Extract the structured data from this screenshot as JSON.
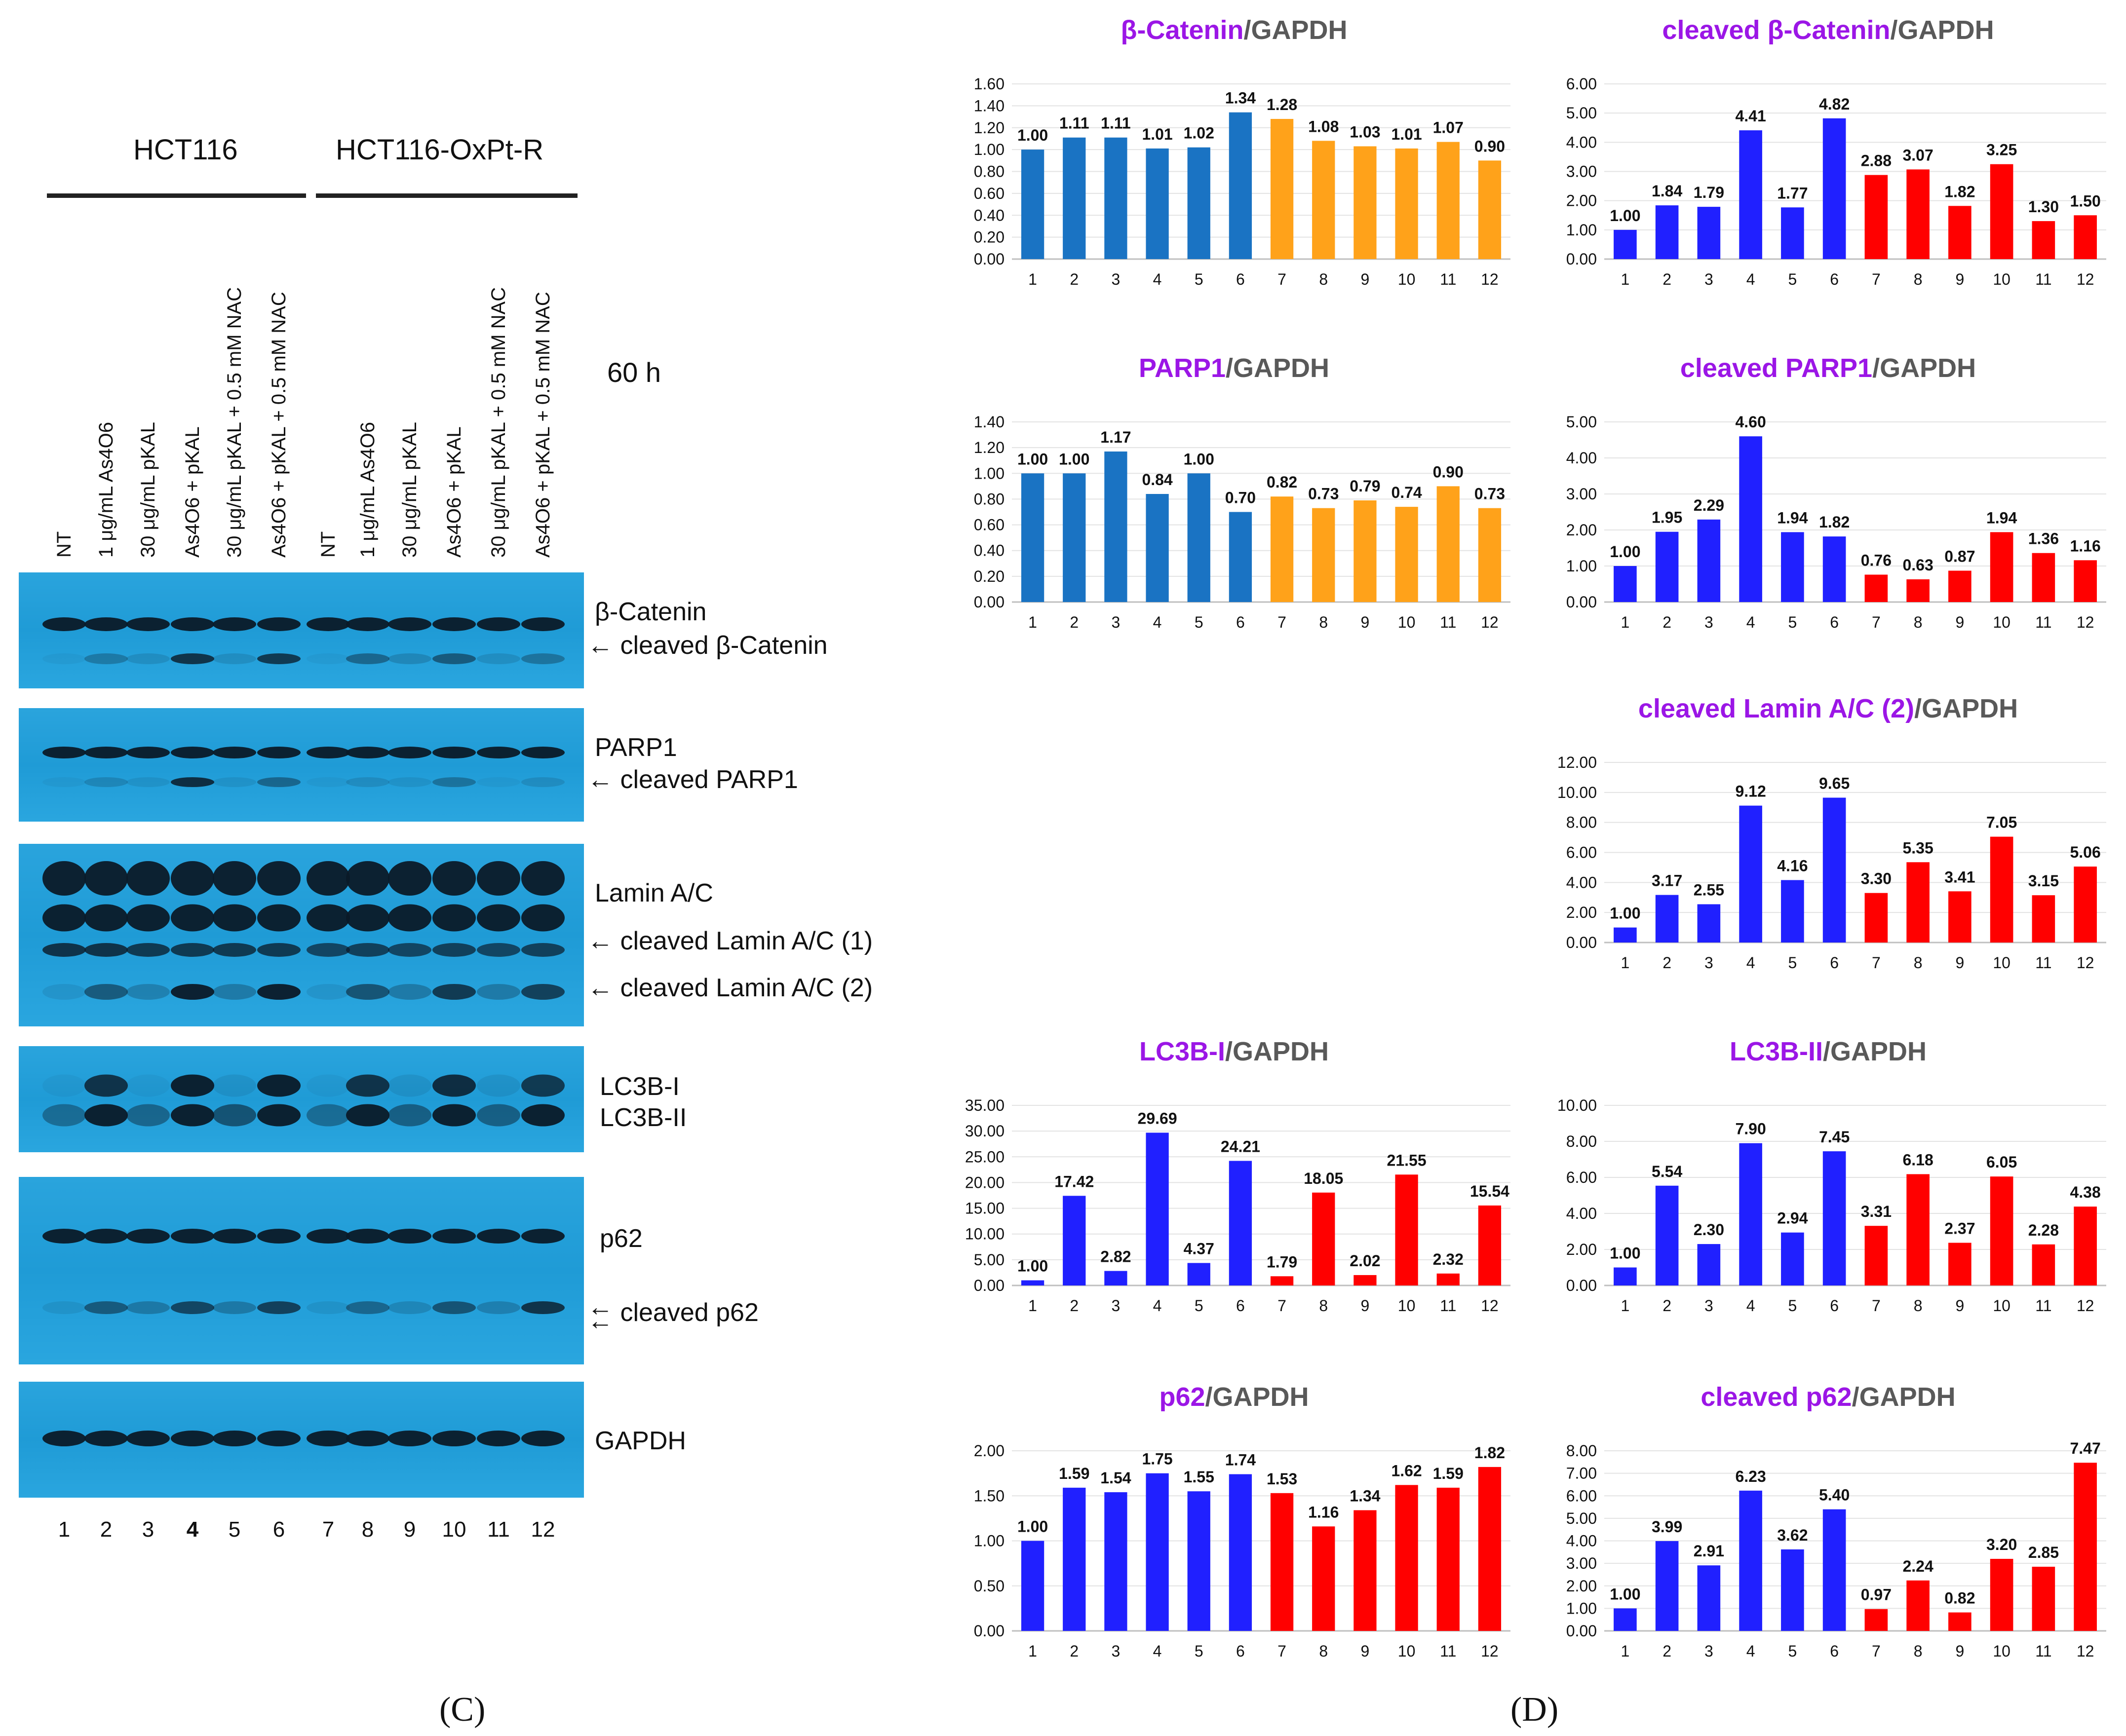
{
  "panel_c": {
    "letter": "(C)",
    "group1": "HCT116",
    "group2": "HCT116-OxPt-R",
    "time": "60 h",
    "lanes": [
      "NT",
      "1 μg/mL As4O6",
      "30 μg/mL pKAL",
      "As4O6 + pKAL",
      "30 μg/mL pKAL + 0.5 mM NAC",
      "As4O6 + pKAL  + 0.5 mM NAC",
      "NT",
      "1 μg/mL As4O6",
      "30 μg/mL pKAL",
      "As4O6 + pKAL",
      "30 μg/mL pKAL + 0.5 mM NAC",
      "As4O6 + pKAL  + 0.5 mM NAC"
    ],
    "lane_numbers": [
      "1",
      "2",
      "3",
      "4",
      "5",
      "6",
      "7",
      "8",
      "9",
      "10",
      "11",
      "12"
    ],
    "bands": {
      "b_catenin": "β-Catenin",
      "cleaved_b_catenin": "cleaved β-Catenin",
      "parp1": "PARP1",
      "cleaved_parp1": "cleaved PARP1",
      "lamin": "Lamin A/C",
      "cleaved_lamin1": "cleaved Lamin A/C (1)",
      "cleaved_lamin2": "cleaved Lamin A/C (2)",
      "lc3b_i": "LC3B-I",
      "lc3b_ii": "LC3B-II",
      "p62": "p62",
      "cleaved_p62": "cleaved p62",
      "gapdh": "GAPDH"
    },
    "arrow": "←"
  },
  "panel_d": {
    "letter": "(D)"
  },
  "colors": {
    "steel_blue": "#1a73c3",
    "orange": "#ffa21a",
    "blue": "#2020ff",
    "red": "#ff0000",
    "title_purple": "#9b16e6",
    "title_gray": "#595959",
    "blot": "#1f9bd6",
    "band": "#0b1a28"
  },
  "chart_data": [
    {
      "id": "c1",
      "type": "bar",
      "title_colored": "β-Catenin",
      "title_rest": "/GAPDH",
      "categories": [
        "1",
        "2",
        "3",
        "4",
        "5",
        "6",
        "7",
        "8",
        "9",
        "10",
        "11",
        "12"
      ],
      "values": [
        1.0,
        1.11,
        1.11,
        1.01,
        1.02,
        1.34,
        1.28,
        1.08,
        1.03,
        1.01,
        1.07,
        0.9
      ],
      "value_labels": [
        "1.00",
        "1.11",
        "1.11",
        "1.01",
        "1.02",
        "1.34",
        "1.28",
        "1.08",
        "1.03",
        "1.01",
        "1.07",
        "0.90"
      ],
      "colors": [
        "#1a73c3",
        "#1a73c3",
        "#1a73c3",
        "#1a73c3",
        "#1a73c3",
        "#1a73c3",
        "#ffa21a",
        "#ffa21a",
        "#ffa21a",
        "#ffa21a",
        "#ffa21a",
        "#ffa21a"
      ],
      "ylim": [
        0,
        1.6
      ],
      "yticks": [
        "0.00",
        "0.20",
        "0.40",
        "0.60",
        "0.80",
        "1.00",
        "1.20",
        "1.40",
        "1.60"
      ]
    },
    {
      "id": "c2",
      "type": "bar",
      "title_colored": "cleaved β-Catenin",
      "title_rest": "/GAPDH",
      "categories": [
        "1",
        "2",
        "3",
        "4",
        "5",
        "6",
        "7",
        "8",
        "9",
        "10",
        "11",
        "12"
      ],
      "values": [
        1.0,
        1.84,
        1.79,
        4.41,
        1.77,
        4.82,
        2.88,
        3.07,
        1.82,
        3.25,
        1.3,
        1.5
      ],
      "value_labels": [
        "1.00",
        "1.84",
        "1.79",
        "4.41",
        "1.77",
        "4.82",
        "2.88",
        "3.07",
        "1.82",
        "3.25",
        "1.30",
        "1.50"
      ],
      "colors": [
        "#2020ff",
        "#2020ff",
        "#2020ff",
        "#2020ff",
        "#2020ff",
        "#2020ff",
        "#ff0000",
        "#ff0000",
        "#ff0000",
        "#ff0000",
        "#ff0000",
        "#ff0000"
      ],
      "ylim": [
        0,
        6
      ],
      "yticks": [
        "0.00",
        "1.00",
        "2.00",
        "3.00",
        "4.00",
        "5.00",
        "6.00"
      ]
    },
    {
      "id": "c3",
      "type": "bar",
      "title_colored": "PARP1",
      "title_rest": "/GAPDH",
      "categories": [
        "1",
        "2",
        "3",
        "4",
        "5",
        "6",
        "7",
        "8",
        "9",
        "10",
        "11",
        "12"
      ],
      "values": [
        1.0,
        1.0,
        1.17,
        0.84,
        1.0,
        0.7,
        0.82,
        0.73,
        0.79,
        0.74,
        0.9,
        0.73
      ],
      "value_labels": [
        "1.00",
        "1.00",
        "1.17",
        "0.84",
        "1.00",
        "0.70",
        "0.82",
        "0.73",
        "0.79",
        "0.74",
        "0.90",
        "0.73"
      ],
      "colors": [
        "#1a73c3",
        "#1a73c3",
        "#1a73c3",
        "#1a73c3",
        "#1a73c3",
        "#1a73c3",
        "#ffa21a",
        "#ffa21a",
        "#ffa21a",
        "#ffa21a",
        "#ffa21a",
        "#ffa21a"
      ],
      "ylim": [
        0,
        1.4
      ],
      "yticks": [
        "0.00",
        "0.20",
        "0.40",
        "0.60",
        "0.80",
        "1.00",
        "1.20",
        "1.40"
      ]
    },
    {
      "id": "c4",
      "type": "bar",
      "title_colored": "cleaved PARP1",
      "title_rest": "/GAPDH",
      "categories": [
        "1",
        "2",
        "3",
        "4",
        "5",
        "6",
        "7",
        "8",
        "9",
        "10",
        "11",
        "12"
      ],
      "values": [
        1.0,
        1.95,
        2.29,
        4.6,
        1.94,
        1.82,
        0.76,
        0.63,
        0.87,
        1.94,
        1.36,
        1.16
      ],
      "value_labels": [
        "1.00",
        "1.95",
        "2.29",
        "4.60",
        "1.94",
        "1.82",
        "0.76",
        "0.63",
        "0.87",
        "1.94",
        "1.36",
        "1.16"
      ],
      "colors": [
        "#2020ff",
        "#2020ff",
        "#2020ff",
        "#2020ff",
        "#2020ff",
        "#2020ff",
        "#ff0000",
        "#ff0000",
        "#ff0000",
        "#ff0000",
        "#ff0000",
        "#ff0000"
      ],
      "ylim": [
        0,
        5
      ],
      "yticks": [
        "0.00",
        "1.00",
        "2.00",
        "3.00",
        "4.00",
        "5.00"
      ]
    },
    {
      "id": "c5",
      "type": "bar",
      "title_colored": "cleaved Lamin A/C (2)",
      "title_rest": "/GAPDH",
      "categories": [
        "1",
        "2",
        "3",
        "4",
        "5",
        "6",
        "7",
        "8",
        "9",
        "10",
        "11",
        "12"
      ],
      "values": [
        1.0,
        3.17,
        2.55,
        9.12,
        4.16,
        9.65,
        3.3,
        5.35,
        3.41,
        7.05,
        3.15,
        5.06
      ],
      "value_labels": [
        "1.00",
        "3.17",
        "2.55",
        "9.12",
        "4.16",
        "9.65",
        "3.30",
        "5.35",
        "3.41",
        "7.05",
        "3.15",
        "5.06"
      ],
      "colors": [
        "#2020ff",
        "#2020ff",
        "#2020ff",
        "#2020ff",
        "#2020ff",
        "#2020ff",
        "#ff0000",
        "#ff0000",
        "#ff0000",
        "#ff0000",
        "#ff0000",
        "#ff0000"
      ],
      "ylim": [
        0,
        12
      ],
      "yticks": [
        "0.00",
        "2.00",
        "4.00",
        "6.00",
        "8.00",
        "10.00",
        "12.00"
      ]
    },
    {
      "id": "c6",
      "type": "bar",
      "title_colored": "LC3B-I",
      "title_rest": "/GAPDH",
      "categories": [
        "1",
        "2",
        "3",
        "4",
        "5",
        "6",
        "7",
        "8",
        "9",
        "10",
        "11",
        "12"
      ],
      "values": [
        1.0,
        17.42,
        2.82,
        29.69,
        4.37,
        24.21,
        1.79,
        18.05,
        2.02,
        21.55,
        2.32,
        15.54
      ],
      "value_labels": [
        "1.00",
        "17.42",
        "2.82",
        "29.69",
        "4.37",
        "24.21",
        "1.79",
        "18.05",
        "2.02",
        "21.55",
        "2.32",
        "15.54"
      ],
      "colors": [
        "#2020ff",
        "#2020ff",
        "#2020ff",
        "#2020ff",
        "#2020ff",
        "#2020ff",
        "#ff0000",
        "#ff0000",
        "#ff0000",
        "#ff0000",
        "#ff0000",
        "#ff0000"
      ],
      "ylim": [
        0,
        35
      ],
      "yticks": [
        "0.00",
        "5.00",
        "10.00",
        "15.00",
        "20.00",
        "25.00",
        "30.00",
        "35.00"
      ]
    },
    {
      "id": "c7",
      "type": "bar",
      "title_colored": "LC3B-II",
      "title_rest": "/GAPDH",
      "categories": [
        "1",
        "2",
        "3",
        "4",
        "5",
        "6",
        "7",
        "8",
        "9",
        "10",
        "11",
        "12"
      ],
      "values": [
        1.0,
        5.54,
        2.3,
        7.9,
        2.94,
        7.45,
        3.31,
        6.18,
        2.37,
        6.05,
        2.28,
        4.38
      ],
      "value_labels": [
        "1.00",
        "5.54",
        "2.30",
        "7.90",
        "2.94",
        "7.45",
        "3.31",
        "6.18",
        "2.37",
        "6.05",
        "2.28",
        "4.38"
      ],
      "colors": [
        "#2020ff",
        "#2020ff",
        "#2020ff",
        "#2020ff",
        "#2020ff",
        "#2020ff",
        "#ff0000",
        "#ff0000",
        "#ff0000",
        "#ff0000",
        "#ff0000",
        "#ff0000"
      ],
      "ylim": [
        0,
        10
      ],
      "yticks": [
        "0.00",
        "2.00",
        "4.00",
        "6.00",
        "8.00",
        "10.00"
      ]
    },
    {
      "id": "c8",
      "type": "bar",
      "title_colored": "p62",
      "title_rest": "/GAPDH",
      "categories": [
        "1",
        "2",
        "3",
        "4",
        "5",
        "6",
        "7",
        "8",
        "9",
        "10",
        "11",
        "12"
      ],
      "values": [
        1.0,
        1.59,
        1.54,
        1.75,
        1.55,
        1.74,
        1.53,
        1.16,
        1.34,
        1.62,
        1.59,
        1.82
      ],
      "value_labels": [
        "1.00",
        "1.59",
        "1.54",
        "1.75",
        "1.55",
        "1.74",
        "1.53",
        "1.16",
        "1.34",
        "1.62",
        "1.59",
        "1.82"
      ],
      "colors": [
        "#2020ff",
        "#2020ff",
        "#2020ff",
        "#2020ff",
        "#2020ff",
        "#2020ff",
        "#ff0000",
        "#ff0000",
        "#ff0000",
        "#ff0000",
        "#ff0000",
        "#ff0000"
      ],
      "ylim": [
        0,
        2
      ],
      "yticks": [
        "0.00",
        "0.50",
        "1.00",
        "1.50",
        "2.00"
      ]
    },
    {
      "id": "c9",
      "type": "bar",
      "title_colored": "cleaved p62",
      "title_rest": "/GAPDH",
      "categories": [
        "1",
        "2",
        "3",
        "4",
        "5",
        "6",
        "7",
        "8",
        "9",
        "10",
        "11",
        "12"
      ],
      "values": [
        1.0,
        3.99,
        2.91,
        6.23,
        3.62,
        5.4,
        0.97,
        2.24,
        0.82,
        3.2,
        2.85,
        7.47
      ],
      "value_labels": [
        "1.00",
        "3.99",
        "2.91",
        "6.23",
        "3.62",
        "5.40",
        "0.97",
        "2.24",
        "0.82",
        "3.20",
        "2.85",
        "7.47"
      ],
      "colors": [
        "#2020ff",
        "#2020ff",
        "#2020ff",
        "#2020ff",
        "#2020ff",
        "#2020ff",
        "#ff0000",
        "#ff0000",
        "#ff0000",
        "#ff0000",
        "#ff0000",
        "#ff0000"
      ],
      "ylim": [
        0,
        8
      ],
      "yticks": [
        "0.00",
        "1.00",
        "2.00",
        "3.00",
        "4.00",
        "5.00",
        "6.00",
        "7.00",
        "8.00"
      ]
    }
  ]
}
